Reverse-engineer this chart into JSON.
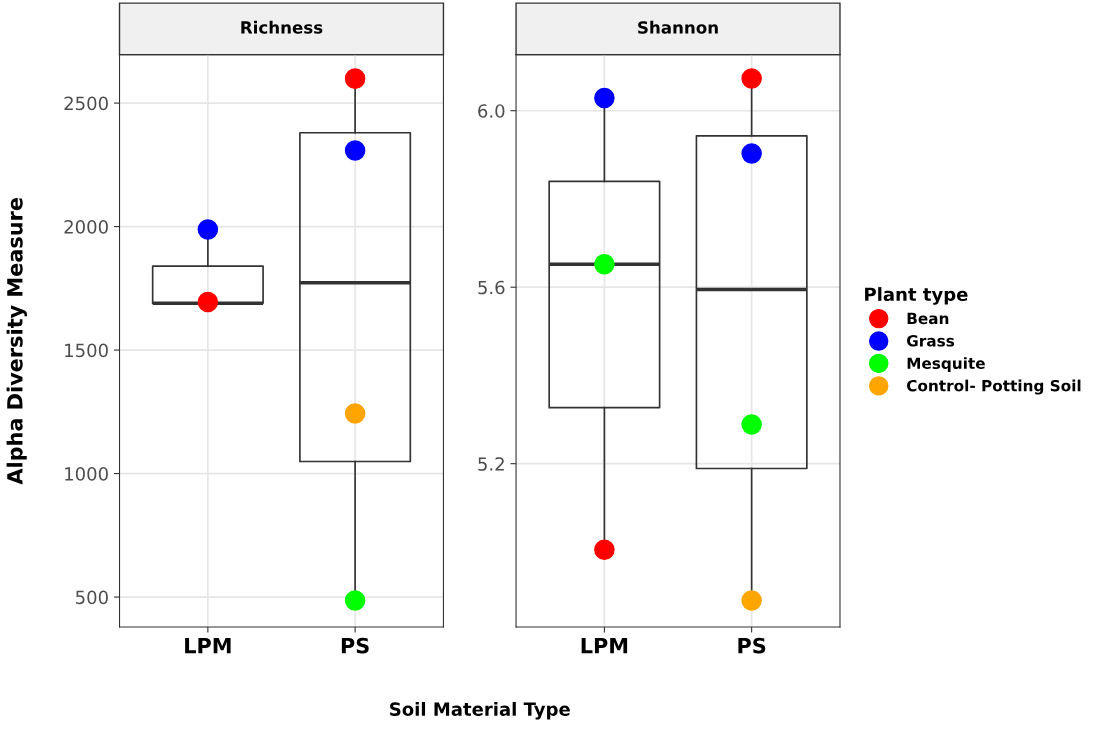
{
  "chart_data": [
    {
      "type": "box",
      "title": "Richness",
      "ylabel": "Alpha Diversity Measure",
      "xlabel": "Soil Material Type",
      "categories": [
        "LPM",
        "PS"
      ],
      "ylim": [
        379,
        2696
      ],
      "yticks": [
        500,
        1000,
        1500,
        2000,
        2500
      ],
      "grid": true,
      "marker": "circle",
      "boxes": [
        {
          "low": 1690,
          "q1": 1690,
          "median": 1690,
          "q3": 1840,
          "high": 1988
        },
        {
          "low": 486,
          "q1": 1049,
          "median": 1773,
          "q3": 2380,
          "high": 2599
        }
      ],
      "series": [
        {
          "type": "scatter",
          "color": "#ff0000",
          "values": [
            1695,
            2599
          ]
        },
        {
          "type": "scatter",
          "color": "#0000ff",
          "values": [
            1988,
            2308
          ]
        },
        {
          "type": "scatter",
          "color": "#00ff00",
          "values": [
            null,
            486
          ]
        },
        {
          "type": "scatter",
          "color": "#ffa500",
          "values": [
            null,
            1243
          ]
        }
      ]
    },
    {
      "type": "box",
      "title": "Shannon",
      "categories": [
        "LPM",
        "PS"
      ],
      "ylim": [
        4.83,
        6.127
      ],
      "yticks": [
        5.2,
        5.6,
        {
          "value": 6.0,
          "label": "6.0"
        }
      ],
      "grid": true,
      "marker": "circle",
      "legend": "right",
      "legend_title": "Plant type",
      "boxes": [
        {
          "low": 5.005,
          "q1": 5.327,
          "median": 5.652,
          "q3": 5.84,
          "high": 6.029
        },
        {
          "low": 4.89,
          "q1": 5.189,
          "median": 5.595,
          "q3": 5.943,
          "high": 6.073
        }
      ],
      "series": [
        {
          "name": "Bean",
          "type": "scatter",
          "color": "#ff0000",
          "values": [
            5.005,
            6.073
          ]
        },
        {
          "name": "Grass",
          "type": "scatter",
          "color": "#0000ff",
          "values": [
            6.029,
            5.903
          ]
        },
        {
          "name": "Mesquite",
          "type": "scatter",
          "color": "#00ff00",
          "values": [
            5.652,
            5.289
          ]
        },
        {
          "name": "Control- Potting Soil",
          "type": "scatter",
          "color": "#ffa500",
          "values": [
            null,
            4.89
          ]
        }
      ]
    }
  ]
}
